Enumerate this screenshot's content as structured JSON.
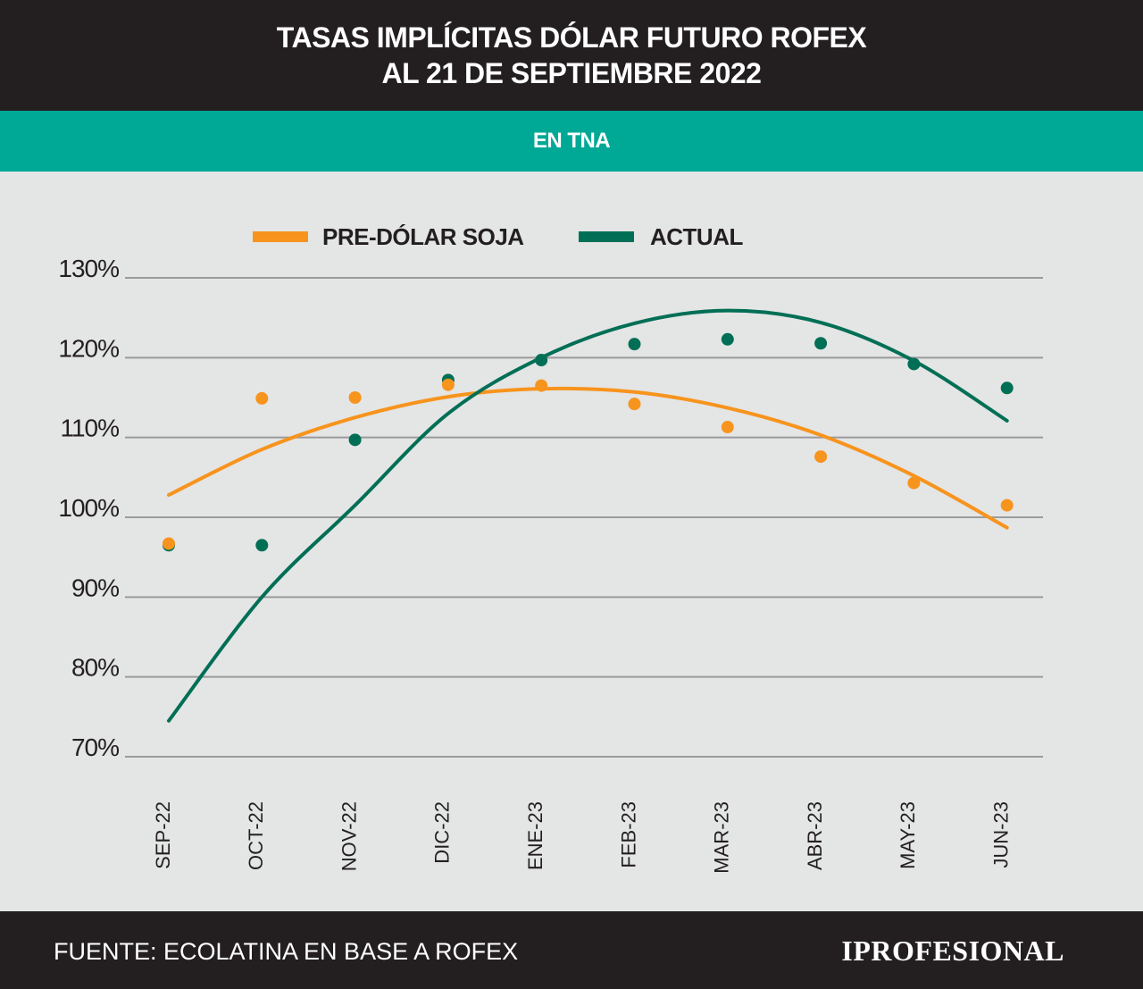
{
  "header": {
    "title_line1": "TASAS IMPLÍCITAS DÓLAR FUTURO ROFEX",
    "title_line2": "AL 21 DE SEPTIEMBRE 2022",
    "subtitle": "EN TNA"
  },
  "footer": {
    "source": "FUENTE: ECOLATINA EN BASE A ROFEX",
    "logo": "IPROFESIONAL"
  },
  "chart_data": {
    "type": "scatter",
    "categories": [
      "SEP-22",
      "OCT-22",
      "NOV-22",
      "DIC-22",
      "ENE-23",
      "FEB-23",
      "MAR-23",
      "ABR-23",
      "MAY-23",
      "JUN-23"
    ],
    "y_ticks": [
      "130%",
      "120%",
      "110%",
      "100%",
      "90%",
      "80%",
      "70%"
    ],
    "ylim": [
      70,
      130
    ],
    "grid": true,
    "legend_position": "top",
    "series": [
      {
        "name": "PRE-DÓLAR SOJA",
        "color": "#f7941d",
        "values": [
          96.7,
          114.9,
          115.0,
          116.6,
          116.5,
          114.2,
          111.3,
          107.6,
          104.3,
          101.5
        ],
        "trend": [
          102.8,
          108.5,
          112.5,
          115.1,
          116.1,
          115.7,
          113.7,
          110.3,
          105.2,
          98.7
        ]
      },
      {
        "name": "ACTUAL",
        "color": "#006f55",
        "values": [
          96.5,
          96.5,
          109.7,
          117.2,
          119.7,
          121.7,
          122.3,
          121.8,
          119.2,
          116.2
        ],
        "trend": [
          74.5,
          90.0,
          101.5,
          113.0,
          120.0,
          124.3,
          125.9,
          124.4,
          119.6,
          112.1
        ]
      }
    ]
  }
}
